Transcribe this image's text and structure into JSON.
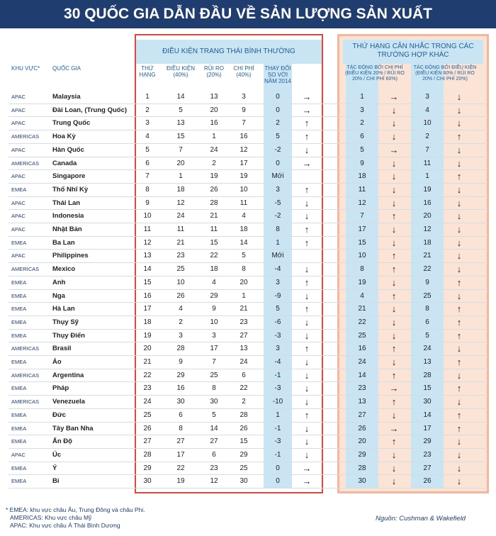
{
  "header": {
    "title": "30 QUỐC GIA DẪN ĐẦU VỀ SẢN LƯỢNG SẢN XUẤT"
  },
  "table": {
    "group_normal": "ĐIỀU KIỆN TRANG THÁI BÌNH THƯỜNG",
    "group_other": "THỨ HẠNG CÂN NHẮC TRONG CÁC TRƯỜNG HỢP KHÁC",
    "columns": [
      "KHU VỰC*",
      "QUỐC GIA",
      "THỨ HẠNG",
      "ĐIỀU KIỆN (40%)",
      "RỦI RO (20%)",
      "CHI PHÍ (40%)",
      "THAY ĐỔI SO VỚI NĂM 2014",
      "TÁC ĐỘNG BỞI CHI PHÍ (ĐIỀU KIỆN 20% / RỦI RO 20% / CHI PHÍ 60%)",
      "TÁC ĐỘNG BỞI ĐIỀU KIỆN (ĐIỀU KIỆN 60% / RỦI RO 20% / CHI PHÍ 20%)"
    ],
    "rows": [
      [
        "APAC",
        "Malaysia",
        1,
        14,
        13,
        3,
        0,
        "→",
        1,
        "→",
        3,
        "↓"
      ],
      [
        "APAC",
        "Đài Loan, (Trung Quốc)",
        2,
        5,
        20,
        9,
        0,
        "→",
        3,
        "↓",
        4,
        "↓"
      ],
      [
        "APAC",
        "Trung Quốc",
        3,
        13,
        16,
        7,
        2,
        "↑",
        2,
        "↓",
        10,
        "↓"
      ],
      [
        "AMERICAS",
        "Hoa Kỳ",
        4,
        15,
        1,
        16,
        5,
        "↑",
        6,
        "↓",
        2,
        "↑"
      ],
      [
        "APAC",
        "Hàn Quốc",
        5,
        7,
        24,
        12,
        -2,
        "↓",
        5,
        "→",
        7,
        "↓"
      ],
      [
        "AMERICAS",
        "Canada",
        6,
        20,
        2,
        17,
        0,
        "→",
        9,
        "↓",
        11,
        "↓"
      ],
      [
        "APAC",
        "Singapore",
        7,
        1,
        19,
        19,
        "Mới",
        "",
        18,
        "↓",
        1,
        "↑"
      ],
      [
        "EMEA",
        "Thổ Nhĩ Kỳ",
        8,
        18,
        26,
        10,
        3,
        "↑",
        11,
        "↓",
        19,
        "↓"
      ],
      [
        "APAC",
        "Thái Lan",
        9,
        12,
        28,
        11,
        -5,
        "↓",
        12,
        "↓",
        16,
        "↓"
      ],
      [
        "APAC",
        "Indonesia",
        10,
        24,
        21,
        4,
        -2,
        "↓",
        7,
        "↑",
        20,
        "↓"
      ],
      [
        "APAC",
        "Nhật Bản",
        11,
        11,
        11,
        18,
        8,
        "↑",
        17,
        "↓",
        12,
        "↓"
      ],
      [
        "EMEA",
        "Ba Lan",
        12,
        21,
        15,
        14,
        1,
        "↑",
        15,
        "↓",
        18,
        "↓"
      ],
      [
        "APAC",
        "Philippines",
        13,
        23,
        22,
        5,
        "Mới",
        "",
        10,
        "↑",
        21,
        "↓"
      ],
      [
        "AMERICAS",
        "Mexico",
        14,
        25,
        18,
        8,
        -4,
        "↓",
        8,
        "↑",
        22,
        "↓"
      ],
      [
        "EMEA",
        "Anh",
        15,
        10,
        4,
        20,
        3,
        "↑",
        19,
        "↓",
        9,
        "↑"
      ],
      [
        "EMEA",
        "Nga",
        16,
        26,
        29,
        1,
        -9,
        "↓",
        4,
        "↑",
        25,
        "↓"
      ],
      [
        "EMEA",
        "Hà Lan",
        17,
        4,
        9,
        21,
        5,
        "↑",
        21,
        "↓",
        8,
        "↑"
      ],
      [
        "EMEA",
        "Thụy Sỹ",
        18,
        2,
        10,
        23,
        -6,
        "↓",
        22,
        "↓",
        6,
        "↑"
      ],
      [
        "EMEA",
        "Thụy Điển",
        19,
        3,
        3,
        27,
        -3,
        "↓",
        25,
        "↓",
        5,
        "↑"
      ],
      [
        "AMERICAS",
        "Brasil",
        20,
        28,
        17,
        13,
        3,
        "↑",
        16,
        "↑",
        24,
        "↓"
      ],
      [
        "EMEA",
        "Áo",
        21,
        9,
        7,
        24,
        -4,
        "↓",
        24,
        "↓",
        13,
        "↑"
      ],
      [
        "AMERICAS",
        "Argentina",
        22,
        29,
        25,
        6,
        -1,
        "↓",
        14,
        "↑",
        28,
        "↓"
      ],
      [
        "EMEA",
        "Pháp",
        23,
        16,
        8,
        22,
        -3,
        "↓",
        23,
        "→",
        15,
        "↑"
      ],
      [
        "AMERICAS",
        "Venezuela",
        24,
        30,
        30,
        2,
        -10,
        "↓",
        13,
        "↑",
        30,
        "↓"
      ],
      [
        "EMEA",
        "Đức",
        25,
        6,
        5,
        28,
        1,
        "↑",
        27,
        "↓",
        14,
        "↑"
      ],
      [
        "EMEA",
        "Tây Ban Nha",
        26,
        8,
        14,
        26,
        -1,
        "↓",
        26,
        "→",
        17,
        "↑"
      ],
      [
        "EMEA",
        "Ấn Độ",
        27,
        27,
        27,
        15,
        -3,
        "↓",
        20,
        "↑",
        29,
        "↓"
      ],
      [
        "APAC",
        "Úc",
        28,
        17,
        6,
        29,
        -1,
        "↓",
        29,
        "↓",
        23,
        "↓"
      ],
      [
        "EMEA",
        "Ý",
        29,
        22,
        23,
        25,
        0,
        "→",
        28,
        "↓",
        27,
        "↓"
      ],
      [
        "EMEA",
        "Bỉ",
        30,
        19,
        12,
        30,
        0,
        "→",
        30,
        "↓",
        26,
        "↓"
      ]
    ]
  },
  "footnotes": [
    "* EMEA: khu vực châu Âu, Trung Đông và châu Phi.",
    "AMERICAS: Khu vực châu Mỹ",
    "APAC: Khu vực châu Á Thái Bình Dương"
  ],
  "source": "Nguồn: Cushman & Wakefield"
}
